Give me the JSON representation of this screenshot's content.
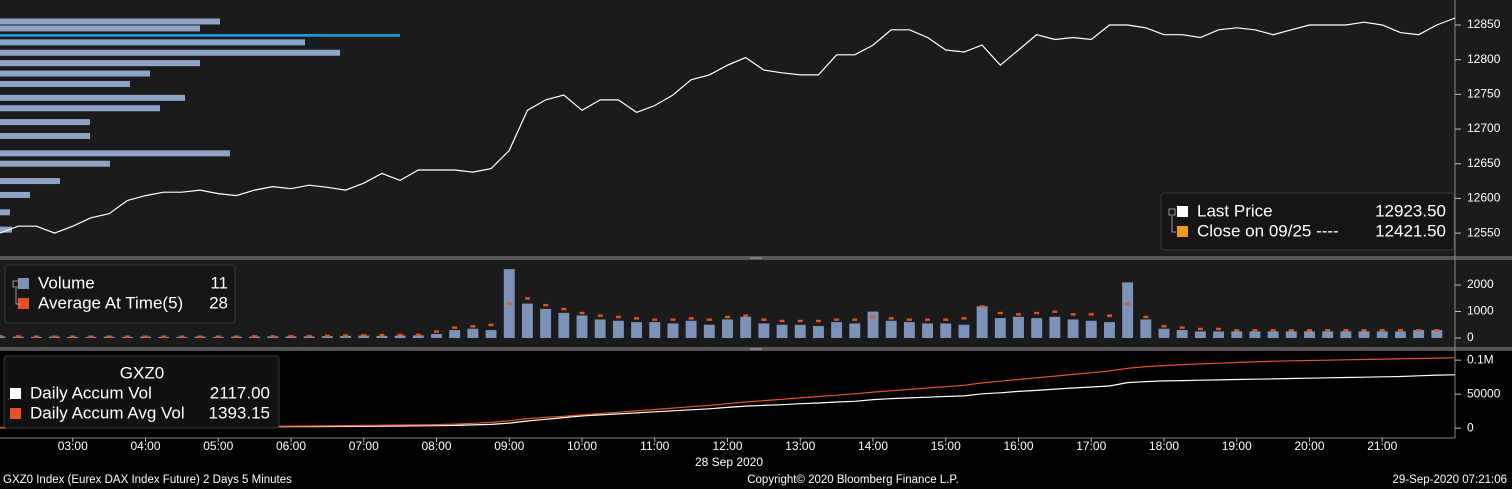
{
  "chart_data": [
    {
      "type": "line",
      "x": [
        2,
        2.25,
        2.5,
        2.75,
        3,
        3.25,
        3.5,
        3.75,
        4,
        4.25,
        4.5,
        4.75,
        5,
        5.25,
        5.5,
        5.75,
        6,
        6.25,
        6.5,
        6.75,
        7,
        7.25,
        7.5,
        7.75,
        8,
        8.25,
        8.5,
        8.75,
        9,
        9.25,
        9.5,
        9.75,
        10,
        10.25,
        10.5,
        10.75,
        11,
        11.25,
        11.5,
        11.75,
        12,
        12.25,
        12.5,
        12.75,
        13,
        13.25,
        13.5,
        13.75,
        14,
        14.25,
        14.5,
        14.75,
        15,
        15.25,
        15.5,
        15.75,
        16,
        16.25,
        16.5,
        16.75,
        17,
        17.25,
        17.5,
        17.75,
        18,
        18.25,
        18.5,
        18.75,
        19,
        19.25,
        19.5,
        19.75,
        20,
        20.25,
        20.5,
        20.75,
        21,
        21.25,
        21.5,
        21.75,
        22
      ],
      "series": [
        {
          "name": "Last Price",
          "color": "#ffffff",
          "last_value": 12923.5,
          "last_value_label": "12923.50",
          "values": [
            12550,
            12560,
            12560,
            12550,
            12560,
            12572,
            12578,
            12597,
            12604,
            12609,
            12609,
            12612,
            12607,
            12604,
            12612,
            12617,
            12614,
            12619,
            12616,
            12612,
            12622,
            12636,
            12626,
            12641,
            12641,
            12641,
            12638,
            12643,
            12669,
            12727,
            12742,
            12749,
            12727,
            12742,
            12742,
            12724,
            12734,
            12749,
            12771,
            12778,
            12792,
            12803,
            12785,
            12781,
            12778,
            12778,
            12807,
            12807,
            12821,
            12843,
            12843,
            12832,
            12814,
            12811,
            12821,
            12792,
            12814,
            12836,
            12829,
            12832,
            12829,
            12850,
            12850,
            12846,
            12836,
            12836,
            12832,
            12843,
            12846,
            12843,
            12836,
            12843,
            12850,
            12850,
            12850,
            12854,
            12850,
            12839,
            12836,
            12850,
            12860
          ]
        }
      ],
      "reference": {
        "name": "Close on 09/25 ----",
        "color": "#f39c12",
        "value": 12421.5,
        "value_label": "12421.50"
      },
      "profile": {
        "color": "#8da4c7",
        "highlight_color": "#1ea0e0",
        "highlight": 12835,
        "xlim": [
          0,
          1455
        ],
        "prices": [
          12855,
          12845,
          12835,
          12825,
          12810,
          12795,
          12780,
          12765,
          12745,
          12730,
          12710,
          12690,
          12665,
          12650,
          12625,
          12605,
          12580,
          12555
        ],
        "values": [
          220,
          200,
          400,
          305,
          340,
          200,
          150,
          130,
          185,
          160,
          90,
          90,
          230,
          110,
          60,
          30,
          10,
          12
        ]
      },
      "xlim": [
        2,
        22
      ],
      "ylim": [
        12517,
        12886
      ],
      "yticks": [
        12550,
        12600,
        12650,
        12700,
        12750,
        12800,
        12850
      ]
    },
    {
      "type": "bar",
      "x": [
        2,
        2.25,
        2.5,
        2.75,
        3,
        3.25,
        3.5,
        3.75,
        4,
        4.25,
        4.5,
        4.75,
        5,
        5.25,
        5.5,
        5.75,
        6,
        6.25,
        6.5,
        6.75,
        7,
        7.25,
        7.5,
        7.75,
        8,
        8.25,
        8.5,
        8.75,
        9,
        9.25,
        9.5,
        9.75,
        10,
        10.25,
        10.5,
        10.75,
        11,
        11.25,
        11.5,
        11.75,
        12,
        12.25,
        12.5,
        12.75,
        13,
        13.25,
        13.5,
        13.75,
        14,
        14.25,
        14.5,
        14.75,
        15,
        15.25,
        15.5,
        15.75,
        16,
        16.25,
        16.5,
        16.75,
        17,
        17.25,
        17.5,
        17.75,
        18,
        18.25,
        18.5,
        18.75,
        19,
        19.25,
        19.5,
        19.75,
        20,
        20.25,
        20.5,
        20.75,
        21,
        21.25,
        21.5,
        21.75
      ],
      "series": [
        {
          "name": "Volume",
          "color": "#7b93b8",
          "style": "bar",
          "last_value": 11,
          "values": [
            60,
            50,
            40,
            50,
            40,
            40,
            50,
            40,
            50,
            40,
            40,
            50,
            40,
            50,
            50,
            60,
            60,
            60,
            70,
            80,
            90,
            80,
            90,
            100,
            150,
            300,
            350,
            300,
            2600,
            1300,
            1100,
            950,
            850,
            700,
            650,
            600,
            600,
            550,
            650,
            500,
            700,
            800,
            550,
            500,
            500,
            450,
            600,
            550,
            1000,
            650,
            600,
            550,
            550,
            500,
            1200,
            750,
            800,
            750,
            800,
            700,
            650,
            600,
            2100,
            700,
            350,
            300,
            250,
            250,
            250,
            250,
            250,
            250,
            250,
            250,
            250,
            250,
            250,
            250,
            300,
            300
          ]
        },
        {
          "name": "Average At Time(5)",
          "color": "#e8501e",
          "style": "marker",
          "last_value": 28,
          "values": [
            80,
            70,
            60,
            60,
            60,
            60,
            60,
            60,
            60,
            60,
            60,
            60,
            60,
            60,
            70,
            70,
            80,
            80,
            90,
            100,
            110,
            110,
            120,
            130,
            250,
            400,
            450,
            500,
            1300,
            1500,
            1250,
            1100,
            950,
            850,
            800,
            750,
            700,
            700,
            750,
            700,
            800,
            850,
            700,
            650,
            650,
            650,
            700,
            700,
            800,
            750,
            700,
            700,
            700,
            750,
            1200,
            950,
            900,
            950,
            1000,
            900,
            900,
            850,
            1300,
            800,
            450,
            400,
            350,
            350,
            300,
            300,
            300,
            300,
            300,
            300,
            300,
            300,
            300,
            300,
            300,
            300
          ]
        }
      ],
      "xlim": [
        2,
        22
      ],
      "ylim": [
        -340,
        2870
      ],
      "yticks": [
        0,
        1000,
        2000
      ]
    },
    {
      "type": "line",
      "title": "GXZ0",
      "x": [
        2,
        2.25,
        2.5,
        2.75,
        3,
        3.25,
        3.5,
        3.75,
        4,
        4.25,
        4.5,
        4.75,
        5,
        5.25,
        5.5,
        5.75,
        6,
        6.25,
        6.5,
        6.75,
        7,
        7.25,
        7.5,
        7.75,
        8,
        8.25,
        8.5,
        8.75,
        9,
        9.25,
        9.5,
        9.75,
        10,
        10.25,
        10.5,
        10.75,
        11,
        11.25,
        11.5,
        11.75,
        12,
        12.25,
        12.5,
        12.75,
        13,
        13.25,
        13.5,
        13.75,
        14,
        14.25,
        14.5,
        14.75,
        15,
        15.25,
        15.5,
        15.75,
        16,
        16.25,
        16.5,
        16.75,
        17,
        17.25,
        17.5,
        17.75,
        18,
        18.25,
        18.5,
        18.75,
        19,
        19.25,
        19.5,
        19.75,
        20,
        20.25,
        20.5,
        20.75,
        21,
        21.25,
        21.5,
        21.75,
        22
      ],
      "series": [
        {
          "name": "Daily Accum Vol",
          "color": "#ffffff",
          "last_value_label": "2117.00",
          "values": [
            500,
            600,
            700,
            800,
            900,
            1000,
            1100,
            1200,
            1300,
            1400,
            1500,
            1600,
            1700,
            1800,
            1900,
            2000,
            2100,
            2200,
            2400,
            2600,
            2800,
            3000,
            3200,
            3400,
            3600,
            4000,
            4800,
            5600,
            7500,
            10500,
            13000,
            15500,
            18000,
            19500,
            21000,
            22500,
            24000,
            25500,
            27000,
            28500,
            30500,
            32500,
            33500,
            34500,
            36000,
            37000,
            38500,
            39500,
            42000,
            43500,
            44500,
            45500,
            46500,
            47500,
            50500,
            52000,
            54000,
            55500,
            57500,
            59000,
            60500,
            62000,
            67000,
            68500,
            69500,
            70000,
            70500,
            71000,
            71500,
            72000,
            72500,
            73000,
            73500,
            74000,
            74500,
            75000,
            75500,
            76000,
            77000,
            78000,
            78500
          ]
        },
        {
          "name": "Daily Accum Avg Vol",
          "color": "#f0501e",
          "last_value_label": "1393.15",
          "values": [
            500,
            650,
            800,
            950,
            1100,
            1250,
            1400,
            1550,
            1700,
            1850,
            2000,
            2150,
            2300,
            2450,
            2600,
            2800,
            3000,
            3200,
            3400,
            3700,
            4000,
            4300,
            4600,
            4900,
            5200,
            6000,
            7200,
            8500,
            11000,
            14000,
            16000,
            17500,
            19500,
            21500,
            23500,
            25500,
            27500,
            29500,
            31500,
            33500,
            36000,
            38500,
            40500,
            42500,
            44500,
            46500,
            48500,
            50500,
            53000,
            55000,
            57000,
            59000,
            61000,
            63000,
            66500,
            69000,
            71500,
            74000,
            76500,
            79000,
            81500,
            84000,
            88000,
            90500,
            92000,
            93500,
            94500,
            95500,
            96500,
            97500,
            98500,
            99000,
            99500,
            100000,
            100500,
            101000,
            101500,
            102000,
            102500,
            103000,
            103500
          ]
        }
      ],
      "xlim": [
        2,
        22
      ],
      "ylim": [
        -13000,
        112000
      ],
      "yticks": [
        0,
        50000,
        {
          "value": 100000,
          "label": "0.1M"
        }
      ],
      "xlabel": "28 Sep 2020",
      "xticks": [
        {
          "value": 3,
          "label": "03:00"
        },
        {
          "value": 4,
          "label": "04:00"
        },
        {
          "value": 5,
          "label": "05:00"
        },
        {
          "value": 6,
          "label": "06:00"
        },
        {
          "value": 7,
          "label": "07:00"
        },
        {
          "value": 8,
          "label": "08:00"
        },
        {
          "value": 9,
          "label": "09:00"
        },
        {
          "value": 10,
          "label": "10:00"
        },
        {
          "value": 11,
          "label": "11:00"
        },
        {
          "value": 12,
          "label": "12:00"
        },
        {
          "value": 13,
          "label": "13:00"
        },
        {
          "value": 14,
          "label": "14:00"
        },
        {
          "value": 15,
          "label": "15:00"
        },
        {
          "value": 16,
          "label": "16:00"
        },
        {
          "value": 17,
          "label": "17:00"
        },
        {
          "value": 18,
          "label": "18:00"
        },
        {
          "value": 19,
          "label": "19:00"
        },
        {
          "value": 20,
          "label": "20:00"
        },
        {
          "value": 21,
          "label": "21:00"
        }
      ]
    }
  ],
  "footer": {
    "left": "GXZ0 Index (Eurex DAX Index Future) 2 Days 5 Minutes",
    "center": "Copyright© 2020 Bloomberg Finance L.P.",
    "right": "29-Sep-2020 07:21:06"
  }
}
